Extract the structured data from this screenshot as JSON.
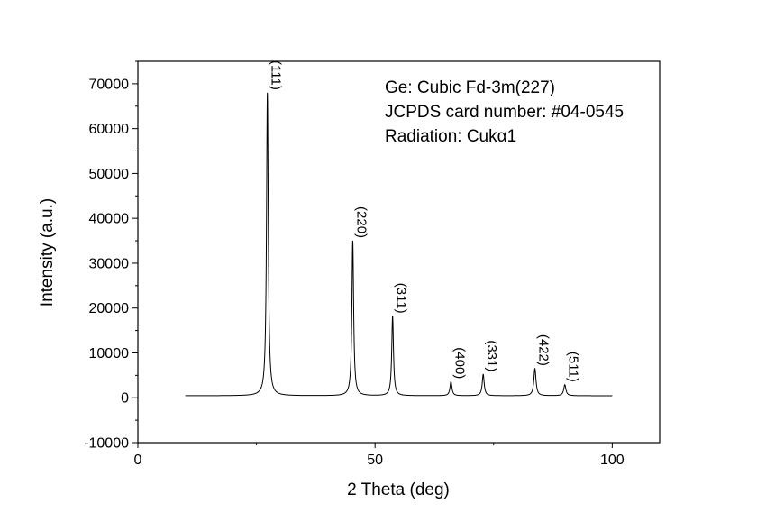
{
  "chart_data": {
    "type": "line",
    "title": "",
    "xlabel": "2 Theta (deg)",
    "ylabel": "Intensity (a.u.)",
    "xlim": [
      0,
      110
    ],
    "ylim": [
      -10000,
      75000
    ],
    "x_ticks": [
      0,
      50,
      100
    ],
    "y_ticks": [
      -10000,
      0,
      10000,
      20000,
      30000,
      40000,
      50000,
      60000,
      70000
    ],
    "x_range": [
      10,
      100
    ],
    "baseline": 450,
    "grid": false,
    "legend": "none",
    "line_color": "#000000",
    "peaks": [
      {
        "hkl": "(111)",
        "x": 27.3,
        "y": 68000,
        "width": 0.22
      },
      {
        "hkl": "(220)",
        "x": 45.3,
        "y": 35000,
        "width": 0.22
      },
      {
        "hkl": "(311)",
        "x": 53.7,
        "y": 18200,
        "width": 0.22
      },
      {
        "hkl": "(400)",
        "x": 66.0,
        "y": 3600,
        "width": 0.25
      },
      {
        "hkl": "(331)",
        "x": 72.8,
        "y": 5200,
        "width": 0.25
      },
      {
        "hkl": "(422)",
        "x": 83.7,
        "y": 6500,
        "width": 0.27
      },
      {
        "hkl": "(511)",
        "x": 90.0,
        "y": 2900,
        "width": 0.28
      }
    ],
    "annotations": [
      "Ge: Cubic  Fd-3m(227)",
      "JCPDS card number: #04-0545",
      "Radiation: Cukα1"
    ]
  }
}
